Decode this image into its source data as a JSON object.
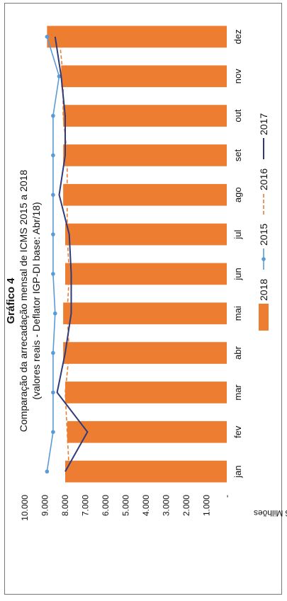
{
  "chart_data": {
    "type": "bar",
    "title": "Gráfico 4",
    "subtitle_line1": "Comparação da arrecadação mensal de ICMS 2015 a 2018",
    "subtitle_line2": "(valores reais - Deflator IGP-DI base: Abr/18)",
    "ylabel": "R$ Milhões",
    "ylim": [
      0,
      10000
    ],
    "yticks": [
      "-",
      "1.000",
      "2.000",
      "3.000",
      "4.000",
      "5.000",
      "6.000",
      "7.000",
      "8.000",
      "9.000",
      "10.000"
    ],
    "categories": [
      "jan",
      "fev",
      "mar",
      "abr",
      "mai",
      "jun",
      "jul",
      "ago",
      "set",
      "out",
      "nov",
      "dez"
    ],
    "orientation": "rotated-90-ccw",
    "series": [
      {
        "name": "2018",
        "kind": "bar",
        "color": "#ED7D31",
        "values": [
          8000,
          7900,
          8000,
          8100,
          8100,
          8000,
          8000,
          8100,
          8100,
          8100,
          8200,
          8900
        ]
      },
      {
        "name": "2015",
        "kind": "line-marker",
        "color": "#5B9BD5",
        "values": [
          8900,
          8600,
          8600,
          8600,
          8500,
          8600,
          8600,
          8600,
          8600,
          8600,
          8300,
          8900
        ]
      },
      {
        "name": "2016",
        "kind": "line-dashed",
        "color": "#ED7D31",
        "values": [
          7800,
          7900,
          8000,
          7800,
          7900,
          7800,
          7900,
          7900,
          7900,
          8100,
          8100,
          8300
        ]
      },
      {
        "name": "2017",
        "kind": "line",
        "color": "#2E3A7A",
        "values": [
          8000,
          6900,
          8400,
          8000,
          7700,
          7700,
          7800,
          8300,
          8000,
          8000,
          8200,
          8500
        ]
      }
    ]
  }
}
